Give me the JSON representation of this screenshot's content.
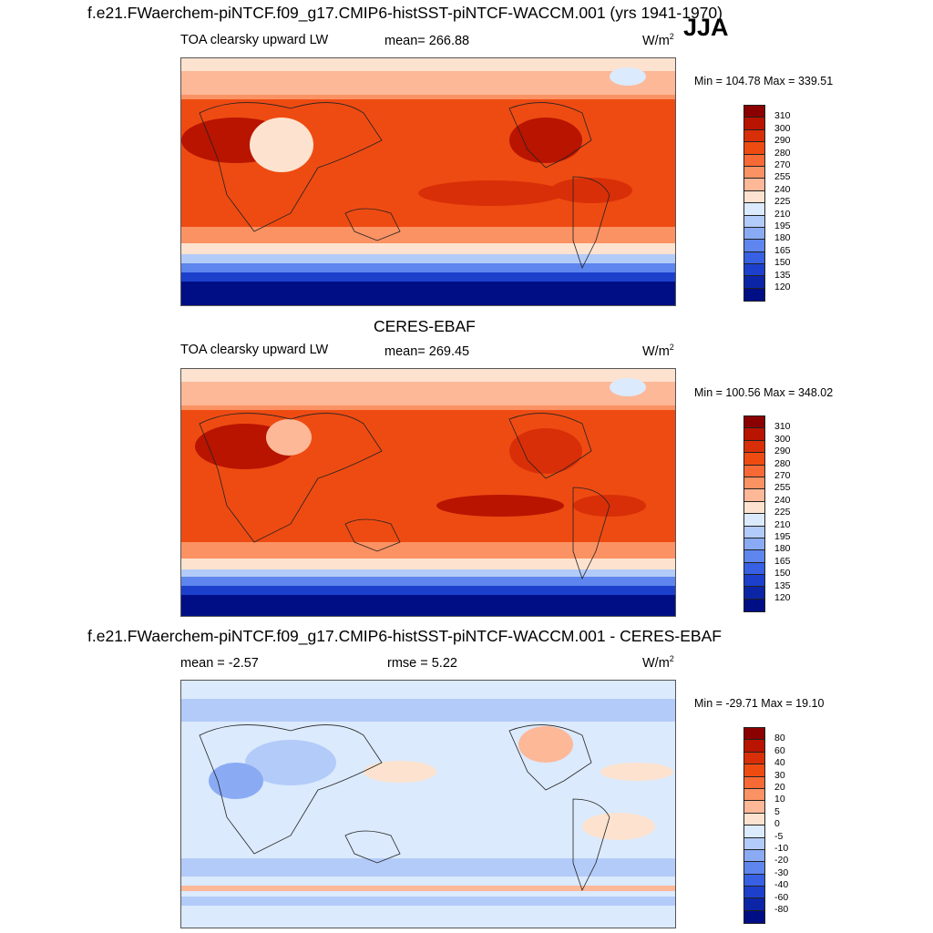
{
  "title": "f.e21.FWaerchem-piNTCF.f09_g17.CMIP6-histSST-piNTCF-WACCM.001 (yrs 1941-1970)",
  "season": "JJA",
  "panels": [
    {
      "heading": "",
      "left_label": "TOA clearsky upward LW",
      "center_label": "mean= 266.88",
      "unit": "W/m",
      "unit_sup": "2",
      "minmax": "Min = 104.78 Max = 339.51",
      "colorbar_labels": [
        "310",
        "300",
        "290",
        "280",
        "270",
        "255",
        "240",
        "225",
        "210",
        "195",
        "180",
        "165",
        "150",
        "135",
        "120"
      ],
      "colorbar_colors": [
        "#8b0000",
        "#b81400",
        "#d92f08",
        "#ee4b12",
        "#f76a35",
        "#fb9263",
        "#fdb898",
        "#fde3cf",
        "#dbeafd",
        "#b3cbf8",
        "#8aabf4",
        "#5e86ee",
        "#3760e3",
        "#1c40cc",
        "#0c25a6",
        "#000e85"
      ]
    },
    {
      "heading": "CERES-EBAF",
      "left_label": "TOA clearsky upward LW",
      "center_label": "mean= 269.45",
      "unit": "W/m",
      "unit_sup": "2",
      "minmax": "Min = 100.56 Max = 348.02",
      "colorbar_labels": [
        "310",
        "300",
        "290",
        "280",
        "270",
        "255",
        "240",
        "225",
        "210",
        "195",
        "180",
        "165",
        "150",
        "135",
        "120"
      ],
      "colorbar_colors": [
        "#8b0000",
        "#b81400",
        "#d92f08",
        "#ee4b12",
        "#f76a35",
        "#fb9263",
        "#fdb898",
        "#fde3cf",
        "#dbeafd",
        "#b3cbf8",
        "#8aabf4",
        "#5e86ee",
        "#3760e3",
        "#1c40cc",
        "#0c25a6",
        "#000e85"
      ]
    },
    {
      "heading": "f.e21.FWaerchem-piNTCF.f09_g17.CMIP6-histSST-piNTCF-WACCM.001 - CERES-EBAF",
      "left_label": "mean =  -2.57",
      "center_label": "rmse =   5.22",
      "unit": "W/m",
      "unit_sup": "2",
      "minmax": "Min = -29.71 Max =  19.10",
      "colorbar_labels": [
        "80",
        "60",
        "40",
        "30",
        "20",
        "10",
        "5",
        "0",
        "-5",
        "-10",
        "-20",
        "-30",
        "-40",
        "-60",
        "-80"
      ],
      "colorbar_colors": [
        "#8b0000",
        "#b81400",
        "#d92f08",
        "#ee4b12",
        "#f76a35",
        "#fb9263",
        "#fdb898",
        "#fde3cf",
        "#dbeafd",
        "#b3cbf8",
        "#8aabf4",
        "#5e86ee",
        "#3760e3",
        "#1c40cc",
        "#0c25a6",
        "#000e85"
      ]
    }
  ]
}
